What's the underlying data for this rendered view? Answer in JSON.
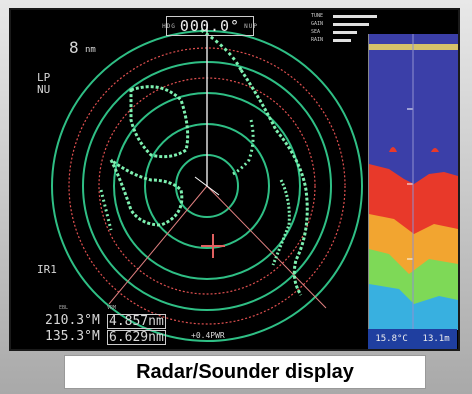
{
  "header": {
    "heading_value": "000.0°",
    "heading_tag": "HDG",
    "mode_tag": "NUP"
  },
  "radar": {
    "range": "8",
    "range_unit": "nm",
    "pulse": "LP",
    "orientation": "NU",
    "interference": "IR1",
    "ebl_label": "EBL",
    "vrm_label": "VRM",
    "ebl1": "210.3°M",
    "ebl2": "135.3°M",
    "vrm1": "4.857nm",
    "vrm2": "6.629nm",
    "cursor_readout": "+0.4PWR",
    "colors": {
      "ring": "#2fbf85",
      "land": "#7ef0b0",
      "vrm": "#e05050",
      "ebl": "#e08080"
    }
  },
  "gain_panel": {
    "items": [
      {
        "label": "TUNE",
        "level": 0.85
      },
      {
        "label": "GAIN",
        "level": 0.7
      },
      {
        "label": "SEA",
        "level": 0.45
      },
      {
        "label": "RAIN",
        "level": 0.35
      }
    ]
  },
  "sounder": {
    "temperature": "15.8°C",
    "depth": "13.1m",
    "colors": {
      "water": "#3b3fa8",
      "bottom_high": "#e8392a",
      "bottom_mid": "#f2a530",
      "bottom_low": "#7ed957",
      "weak": "#38b0e0"
    }
  },
  "caption": "Radar/Sounder display"
}
